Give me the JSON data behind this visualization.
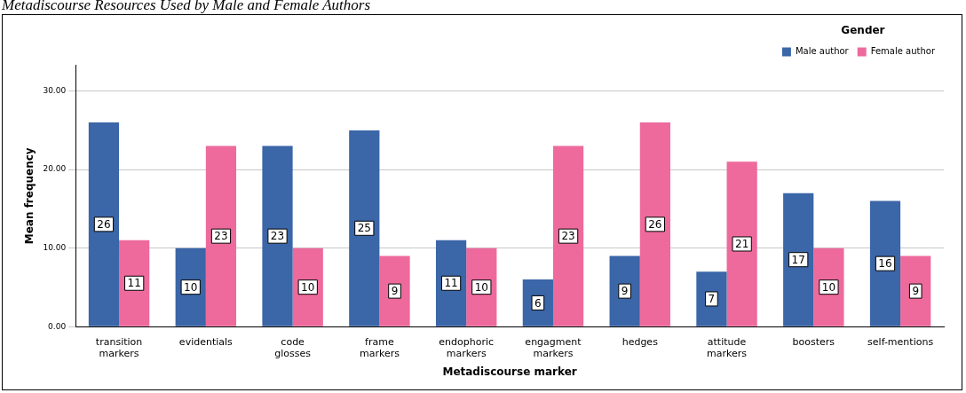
{
  "chart_data": {
    "type": "bar",
    "title": "Metadiscourse Resources Used by Male and Female Authors",
    "xlabel": "Metadiscourse marker",
    "ylabel": "Mean frequency",
    "legend_title": "Gender",
    "categories": [
      "transition markers",
      "evidentials",
      "code glosses",
      "frame markers",
      "endophoric markers",
      "engagment markers",
      "hedges",
      "attitude markers",
      "boosters",
      "self-mentions"
    ],
    "series": [
      {
        "name": "Male author",
        "color": "#3b66a8",
        "values": [
          26,
          10,
          23,
          25,
          11,
          6,
          9,
          7,
          17,
          16
        ]
      },
      {
        "name": "Female author",
        "color": "#ee6a9c",
        "values": [
          11,
          23,
          10,
          9,
          10,
          23,
          26,
          21,
          10,
          9
        ]
      }
    ],
    "ylim": [
      0,
      33.3
    ],
    "yticks": [
      {
        "value": 0,
        "label": "0.00"
      },
      {
        "value": 10,
        "label": "10.00"
      },
      {
        "value": 20,
        "label": "20.00"
      },
      {
        "value": 30,
        "label": "30.00"
      }
    ],
    "grid": "y",
    "legend": "top right",
    "data_labels": true
  }
}
